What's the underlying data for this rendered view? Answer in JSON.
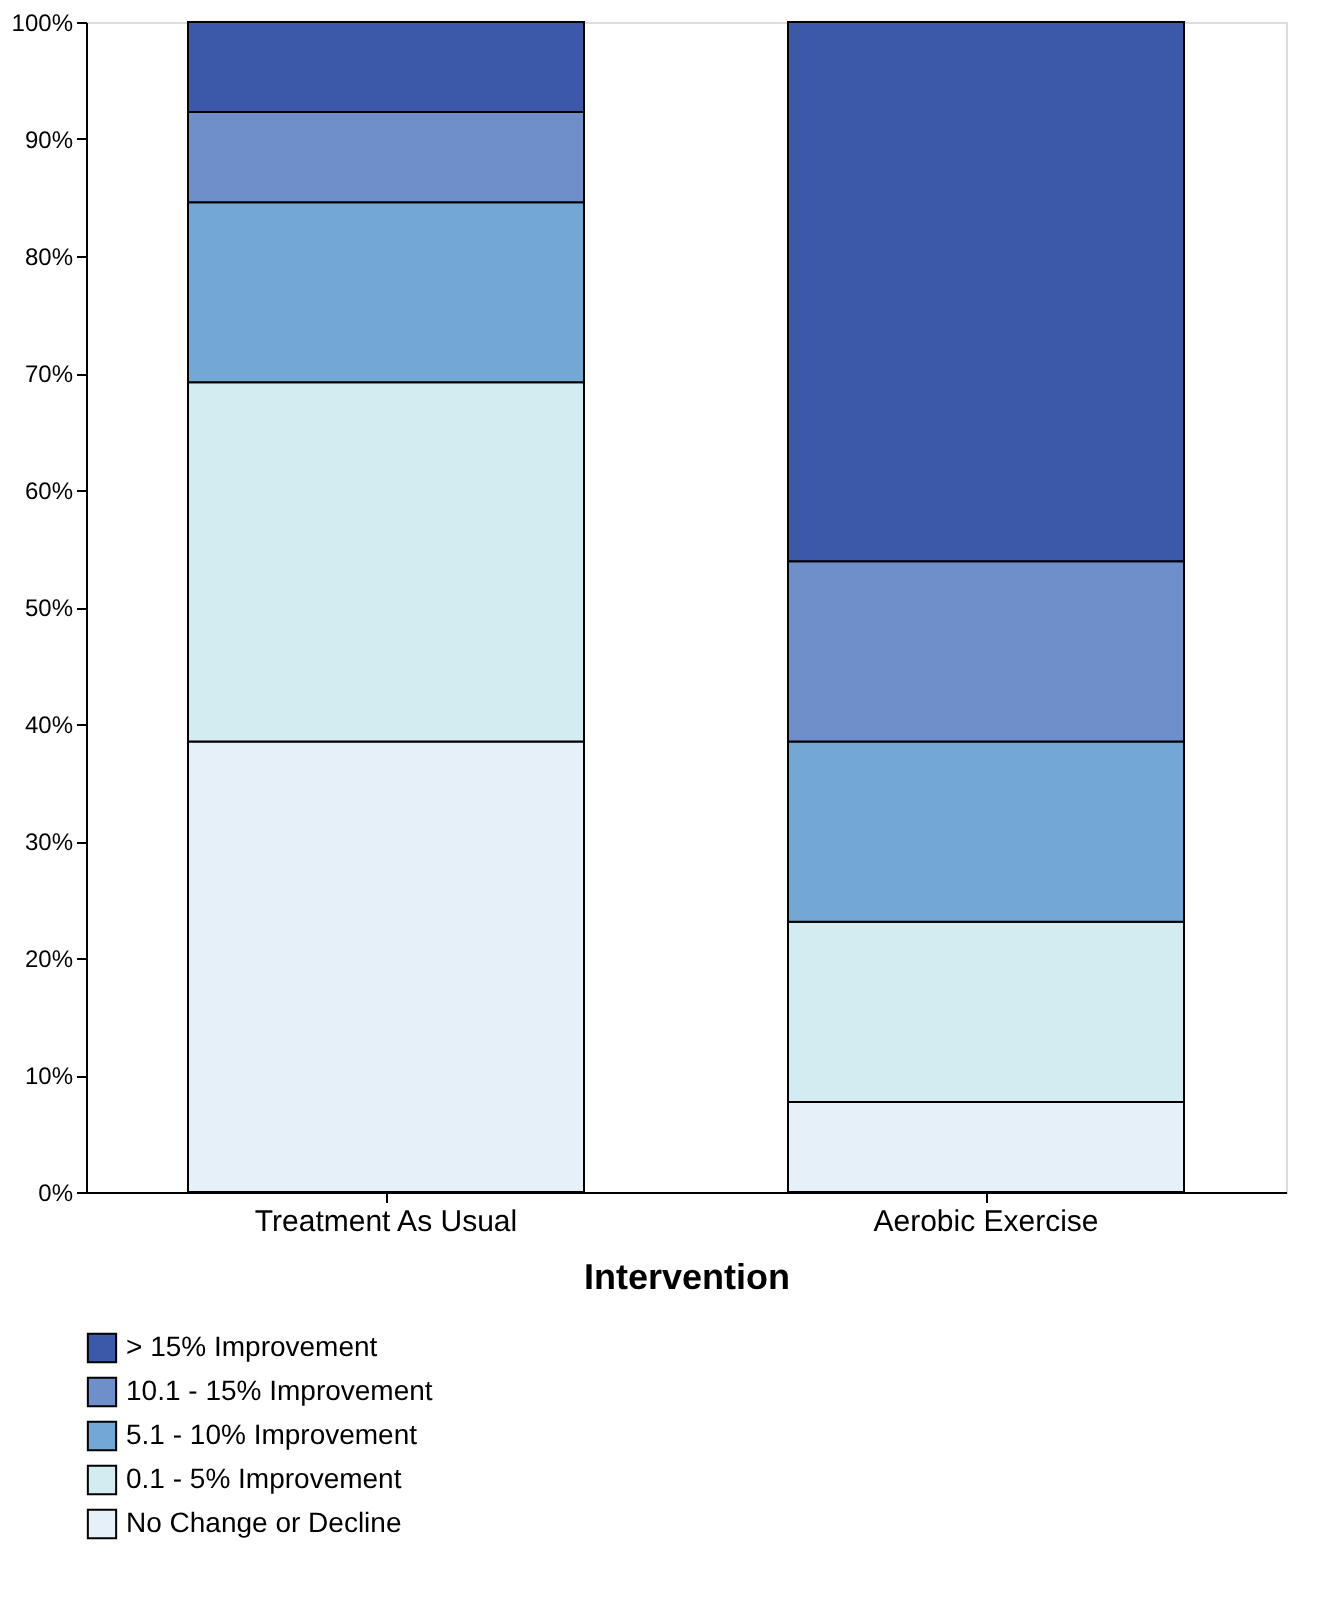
{
  "chart_data": {
    "type": "bar",
    "stacked": true,
    "xlabel": "Intervention",
    "categories": [
      "Treatment As Usual",
      "Aerobic Exercise"
    ],
    "series": [
      {
        "name": "No Change or Decline",
        "color": "#e6f0f8",
        "values": [
          38.5,
          7.7
        ]
      },
      {
        "name": "0.1 - 5% Improvement",
        "color": "#d2ecf2",
        "values": [
          30.7,
          15.4
        ]
      },
      {
        "name": "5.1 - 10% Improvement",
        "color": "#73a8d4",
        "values": [
          15.4,
          15.4
        ]
      },
      {
        "name": "10.1 - 15% Improvement",
        "color": "#6e8fc9",
        "values": [
          7.7,
          15.4
        ]
      },
      {
        "name": "> 15% Improvement",
        "color": "#3c58a8",
        "values": [
          7.7,
          46.1
        ]
      }
    ],
    "ylim": [
      0,
      100
    ],
    "yticks": [
      {
        "value": 0,
        "label": "0%"
      },
      {
        "value": 10,
        "label": "10%"
      },
      {
        "value": 20,
        "label": "20%"
      },
      {
        "value": 30,
        "label": "30%"
      },
      {
        "value": 40,
        "label": "40%"
      },
      {
        "value": 50,
        "label": "50%"
      },
      {
        "value": 60,
        "label": "60%"
      },
      {
        "value": 70,
        "label": "70%"
      },
      {
        "value": 80,
        "label": "80%"
      },
      {
        "value": 90,
        "label": "90%"
      },
      {
        "value": 100,
        "label": "100%"
      }
    ],
    "grid": false,
    "legend": "bottom left"
  }
}
